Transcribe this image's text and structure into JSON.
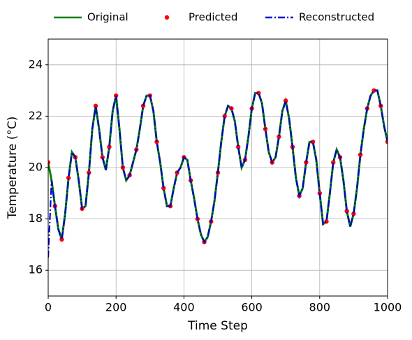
{
  "chart_data": {
    "type": "line",
    "xlabel": "Time Step",
    "ylabel": "Temperature (°C)",
    "xlim": [
      0,
      1000
    ],
    "ylim": [
      15,
      25
    ],
    "xticks": [
      0,
      200,
      400,
      600,
      800,
      1000
    ],
    "yticks": [
      16,
      18,
      20,
      22,
      24
    ],
    "grid": true,
    "legend": "top",
    "x": [
      0,
      10,
      20,
      30,
      40,
      50,
      60,
      70,
      80,
      90,
      100,
      110,
      120,
      130,
      140,
      150,
      160,
      170,
      180,
      190,
      200,
      210,
      220,
      230,
      240,
      250,
      260,
      270,
      280,
      290,
      300,
      310,
      320,
      330,
      340,
      350,
      360,
      370,
      380,
      390,
      400,
      410,
      420,
      430,
      440,
      450,
      460,
      470,
      480,
      490,
      500,
      510,
      520,
      530,
      540,
      550,
      560,
      570,
      580,
      590,
      600,
      610,
      620,
      630,
      640,
      650,
      660,
      670,
      680,
      690,
      700,
      710,
      720,
      730,
      740,
      750,
      760,
      770,
      780,
      790,
      800,
      810,
      820,
      830,
      840,
      850,
      860,
      870,
      880,
      890,
      900,
      910,
      920,
      930,
      940,
      950,
      960,
      970,
      980,
      990,
      1000
    ],
    "series": [
      {
        "name": "Original",
        "color": "#008000",
        "mark": "line",
        "linestyle": "solid",
        "values": [
          20.2,
          19.5,
          18.5,
          17.6,
          17.2,
          18.2,
          19.6,
          20.6,
          20.4,
          19.5,
          18.4,
          18.5,
          19.8,
          21.5,
          22.4,
          21.5,
          20.4,
          19.9,
          20.8,
          22.2,
          22.8,
          21.5,
          20.0,
          19.5,
          19.7,
          20.2,
          20.7,
          21.5,
          22.4,
          22.8,
          22.8,
          22.2,
          21.0,
          20.2,
          19.2,
          18.5,
          18.5,
          19.2,
          19.8,
          20.0,
          20.4,
          20.3,
          19.5,
          18.8,
          18.0,
          17.4,
          17.1,
          17.3,
          17.9,
          18.7,
          19.8,
          21.0,
          22.0,
          22.4,
          22.3,
          21.8,
          20.8,
          20.0,
          20.3,
          21.2,
          22.3,
          22.9,
          22.9,
          22.5,
          21.5,
          20.6,
          20.2,
          20.4,
          21.2,
          22.2,
          22.6,
          21.9,
          20.8,
          19.6,
          18.9,
          19.2,
          20.2,
          21.0,
          21.0,
          20.3,
          19.0,
          17.8,
          17.9,
          19.0,
          20.2,
          20.7,
          20.4,
          19.5,
          18.3,
          17.7,
          18.2,
          19.2,
          20.5,
          21.5,
          22.3,
          22.8,
          23.0,
          23.0,
          22.4,
          21.6,
          21.0
        ]
      },
      {
        "name": "Predicted",
        "color": "#ff0000",
        "mark": "scatter",
        "x": [
          0,
          20,
          40,
          60,
          80,
          100,
          120,
          140,
          160,
          180,
          200,
          220,
          240,
          260,
          280,
          300,
          320,
          340,
          360,
          380,
          400,
          420,
          440,
          460,
          480,
          500,
          520,
          540,
          560,
          580,
          600,
          620,
          640,
          660,
          680,
          700,
          720,
          740,
          760,
          780,
          800,
          820,
          840,
          860,
          880,
          900,
          920,
          940,
          960,
          980,
          1000
        ],
        "values": [
          20.2,
          18.5,
          17.2,
          19.6,
          20.4,
          18.4,
          19.8,
          22.4,
          20.4,
          20.8,
          22.8,
          20.0,
          19.7,
          20.7,
          22.4,
          22.8,
          21.0,
          19.2,
          18.5,
          19.8,
          20.4,
          19.5,
          18.0,
          17.1,
          17.9,
          19.8,
          22.0,
          22.3,
          20.8,
          20.3,
          22.3,
          22.9,
          21.5,
          20.2,
          21.2,
          22.6,
          20.8,
          18.9,
          20.2,
          21.0,
          19.0,
          17.9,
          20.2,
          20.4,
          18.3,
          18.2,
          20.5,
          22.3,
          23.0,
          22.4,
          21.0
        ]
      },
      {
        "name": "Reconstructed",
        "color": "#0000cc",
        "mark": "line",
        "linestyle": "dashdot",
        "values": [
          16.5,
          19.5,
          18.5,
          17.6,
          17.2,
          18.2,
          19.6,
          20.6,
          20.4,
          19.5,
          18.4,
          18.5,
          19.8,
          21.5,
          22.4,
          21.5,
          20.4,
          19.9,
          20.8,
          22.2,
          22.8,
          21.5,
          20.0,
          19.5,
          19.7,
          20.2,
          20.7,
          21.5,
          22.4,
          22.8,
          22.8,
          22.2,
          21.0,
          20.2,
          19.2,
          18.5,
          18.5,
          19.2,
          19.8,
          20.0,
          20.4,
          20.3,
          19.5,
          18.8,
          18.0,
          17.4,
          17.1,
          17.3,
          17.9,
          18.7,
          19.8,
          21.0,
          22.0,
          22.4,
          22.3,
          21.8,
          20.8,
          20.0,
          20.3,
          21.2,
          22.3,
          22.9,
          22.9,
          22.5,
          21.5,
          20.6,
          20.2,
          20.4,
          21.2,
          22.2,
          22.6,
          21.9,
          20.8,
          19.6,
          18.9,
          19.2,
          20.2,
          21.0,
          21.0,
          20.3,
          19.0,
          17.8,
          17.9,
          19.0,
          20.2,
          20.7,
          20.4,
          19.5,
          18.3,
          17.7,
          18.2,
          19.2,
          20.5,
          21.5,
          22.3,
          22.8,
          23.0,
          23.0,
          22.4,
          21.6,
          21.0
        ]
      }
    ]
  }
}
